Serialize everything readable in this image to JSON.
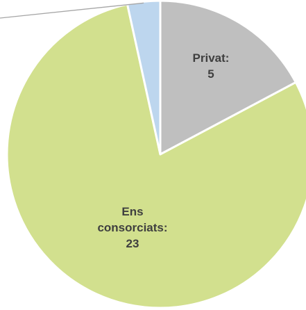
{
  "chart_data": {
    "type": "pie",
    "title": "",
    "start_angle_deg": 0,
    "direction": "clockwise",
    "slices": [
      {
        "name": "Privat",
        "value": 5,
        "color": "#bfbfbf",
        "label_lines": [
          "Privat:",
          "5"
        ]
      },
      {
        "name": "Ens consorciats",
        "value": 23,
        "color": "#d2e08e",
        "label_lines": [
          "Ens",
          "consorciats:",
          "23"
        ]
      },
      {
        "name": "",
        "value": 1,
        "color": "#bdd6ee",
        "label_lines": []
      }
    ],
    "total": 29,
    "legend": "none",
    "leader_line": true,
    "border_color": "#ffffff"
  }
}
